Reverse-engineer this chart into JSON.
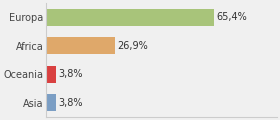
{
  "categories": [
    "Asia",
    "Oceania",
    "Africa",
    "Europa"
  ],
  "values": [
    3.8,
    3.8,
    26.9,
    65.4
  ],
  "labels": [
    "3,8%",
    "3,8%",
    "26,9%",
    "65,4%"
  ],
  "bar_colors": [
    "#7b9ec4",
    "#d94040",
    "#dfa86a",
    "#a8c47a"
  ],
  "background_color": "#f0f0f0",
  "xlim": [
    0,
    90
  ],
  "bar_height": 0.6,
  "label_fontsize": 7.0,
  "tick_fontsize": 7.0,
  "figsize": [
    2.8,
    1.2
  ],
  "dpi": 100
}
